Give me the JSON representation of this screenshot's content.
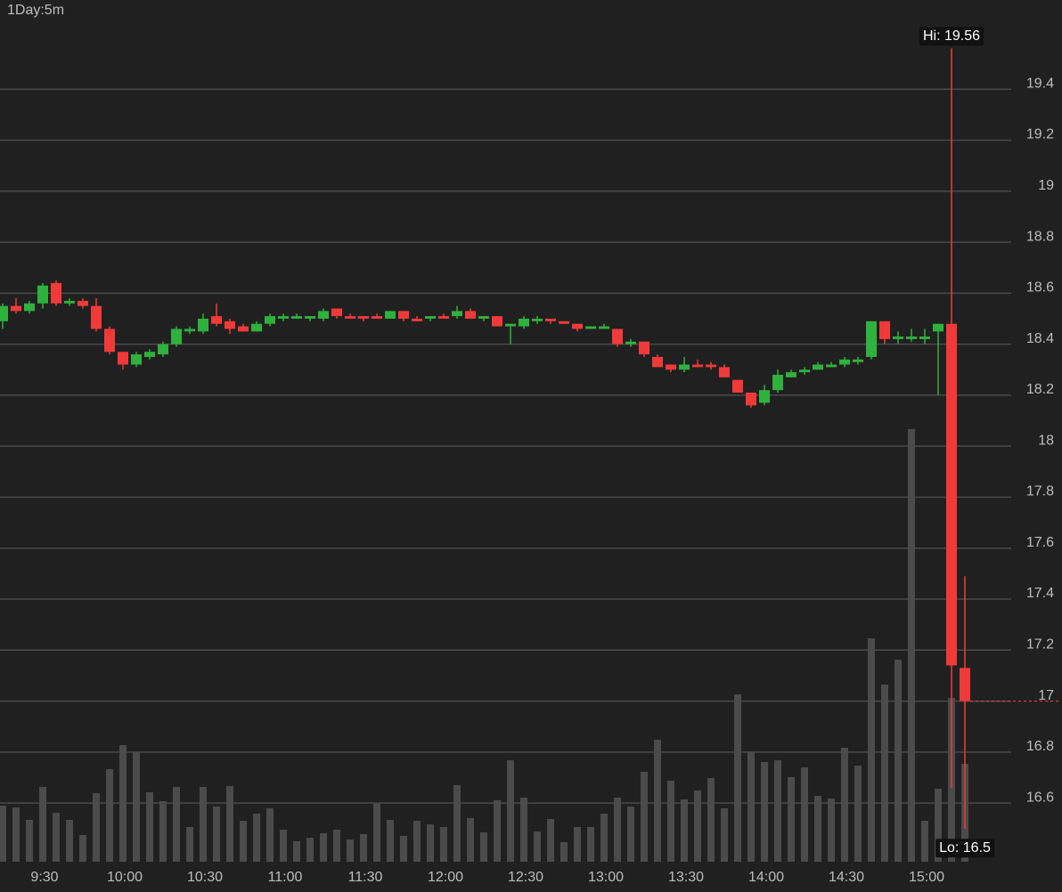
{
  "chart_data": {
    "type": "candlestick",
    "title": "1Day:5m",
    "categories": [
      null,
      null,
      null,
      "9:30",
      null,
      null,
      null,
      null,
      null,
      "10:00",
      null,
      null,
      null,
      null,
      null,
      "10:30",
      null,
      null,
      null,
      null,
      null,
      "11:00",
      null,
      null,
      null,
      null,
      null,
      "11:30",
      null,
      null,
      null,
      null,
      null,
      "12:00",
      null,
      null,
      null,
      null,
      null,
      "12:30",
      null,
      null,
      null,
      null,
      null,
      "13:00",
      null,
      null,
      null,
      null,
      null,
      "13:30",
      null,
      null,
      null,
      null,
      null,
      "14:00",
      null,
      null,
      null,
      null,
      null,
      "14:30",
      null,
      null,
      null,
      null,
      null,
      "15:00",
      null,
      null,
      null
    ],
    "open": [
      18.49,
      18.55,
      18.53,
      18.56,
      18.64,
      18.56,
      18.57,
      18.55,
      18.46,
      18.37,
      18.32,
      18.35,
      18.36,
      18.4,
      18.45,
      18.45,
      18.51,
      18.49,
      18.47,
      18.45,
      18.48,
      18.5,
      18.5,
      18.5,
      18.5,
      18.54,
      18.51,
      18.51,
      18.51,
      18.5,
      18.53,
      18.5,
      18.5,
      18.51,
      18.51,
      18.53,
      18.5,
      18.51,
      18.47,
      18.47,
      18.49,
      18.5,
      18.49,
      18.48,
      18.46,
      18.46,
      18.46,
      18.4,
      18.41,
      18.35,
      18.32,
      18.3,
      18.32,
      18.32,
      18.31,
      18.26,
      18.21,
      18.17,
      18.22,
      18.27,
      18.29,
      18.3,
      18.31,
      18.32,
      18.33,
      18.35,
      18.49,
      18.42,
      18.42,
      18.42,
      18.45,
      18.48,
      17.13
    ],
    "close": [
      18.55,
      18.53,
      18.56,
      18.63,
      18.56,
      18.57,
      18.55,
      18.46,
      18.37,
      18.32,
      18.36,
      18.37,
      18.4,
      18.46,
      18.46,
      18.5,
      18.48,
      18.46,
      18.45,
      18.48,
      18.51,
      18.51,
      18.51,
      18.51,
      18.53,
      18.51,
      18.5,
      18.5,
      18.5,
      18.53,
      18.5,
      18.49,
      18.51,
      18.5,
      18.53,
      18.5,
      18.51,
      18.47,
      18.48,
      18.5,
      18.5,
      18.49,
      18.48,
      18.46,
      18.47,
      18.47,
      18.4,
      18.41,
      18.36,
      18.31,
      18.3,
      18.32,
      18.31,
      18.31,
      18.27,
      18.21,
      18.16,
      18.22,
      18.28,
      18.29,
      18.3,
      18.32,
      18.32,
      18.34,
      18.34,
      18.49,
      18.42,
      18.43,
      18.43,
      18.43,
      18.48,
      17.14,
      17.0
    ],
    "high": [
      18.56,
      18.58,
      18.57,
      18.64,
      18.65,
      18.58,
      18.58,
      18.58,
      18.47,
      18.37,
      18.37,
      18.38,
      18.41,
      18.47,
      18.47,
      18.52,
      18.56,
      18.5,
      18.48,
      18.49,
      18.52,
      18.52,
      18.52,
      18.51,
      18.54,
      18.54,
      18.52,
      18.51,
      18.52,
      18.53,
      18.53,
      18.51,
      18.51,
      18.52,
      18.55,
      18.54,
      18.51,
      18.51,
      18.48,
      18.51,
      18.51,
      18.5,
      18.49,
      18.48,
      18.47,
      18.48,
      18.46,
      18.42,
      18.41,
      18.36,
      18.32,
      18.35,
      18.34,
      18.33,
      18.32,
      18.26,
      18.21,
      18.24,
      18.3,
      18.3,
      18.31,
      18.33,
      18.33,
      18.35,
      18.35,
      18.49,
      18.49,
      18.45,
      18.46,
      18.46,
      18.48,
      19.56,
      17.49
    ],
    "low": [
      18.46,
      18.52,
      18.52,
      18.54,
      18.55,
      18.55,
      18.54,
      18.45,
      18.36,
      18.3,
      18.31,
      18.34,
      18.35,
      18.39,
      18.44,
      18.44,
      18.47,
      18.44,
      18.45,
      18.45,
      18.47,
      18.49,
      18.5,
      18.49,
      18.49,
      18.5,
      18.5,
      18.49,
      18.5,
      18.5,
      18.49,
      18.49,
      18.49,
      18.5,
      18.5,
      18.5,
      18.49,
      18.47,
      18.4,
      18.46,
      18.48,
      18.48,
      18.48,
      18.45,
      18.46,
      18.46,
      18.39,
      18.39,
      18.35,
      18.31,
      18.29,
      18.29,
      18.31,
      18.3,
      18.27,
      18.21,
      18.15,
      18.16,
      18.21,
      18.27,
      18.28,
      18.3,
      18.31,
      18.31,
      18.32,
      18.34,
      18.4,
      18.4,
      18.41,
      18.4,
      18.2,
      16.66,
      16.5
    ],
    "volume": [
      6.3,
      6.1,
      4.7,
      8.4,
      5.5,
      4.7,
      3.0,
      7.7,
      10.4,
      13.1,
      12.3,
      7.8,
      6.8,
      8.4,
      3.9,
      8.4,
      6.2,
      8.5,
      4.6,
      5.4,
      6.0,
      3.6,
      2.3,
      2.7,
      3.2,
      3.6,
      2.5,
      3.1,
      6.6,
      4.7,
      2.9,
      4.6,
      4.2,
      3.9,
      8.6,
      4.9,
      3.3,
      6.9,
      11.4,
      7.2,
      3.4,
      4.8,
      2.2,
      3.9,
      3.9,
      5.4,
      7.2,
      6.2,
      10.1,
      13.7,
      9.1,
      7.0,
      8.0,
      9.4,
      6.0,
      18.8,
      12.4,
      11.2,
      11.4,
      9.5,
      10.6,
      7.4,
      7.1,
      12.8,
      10.8,
      25.1,
      19.9,
      22.7,
      48.6,
      4.6,
      8.2,
      18.4,
      11.0
    ],
    "up_color": "#2fb13d",
    "down_color": "#f03a3a",
    "volume_color": "#4b4b4b",
    "ylim": [
      16.37,
      19.75
    ],
    "yticks": [
      16.6,
      16.8,
      17,
      17.2,
      17.4,
      17.6,
      17.8,
      18,
      18.2,
      18.4,
      18.6,
      18.8,
      19,
      19.2,
      19.4
    ],
    "vlim": [
      0,
      96.8
    ],
    "grid": true,
    "annotations": {
      "high": "Hi: 19.56",
      "low": "Lo: 16.5"
    }
  }
}
